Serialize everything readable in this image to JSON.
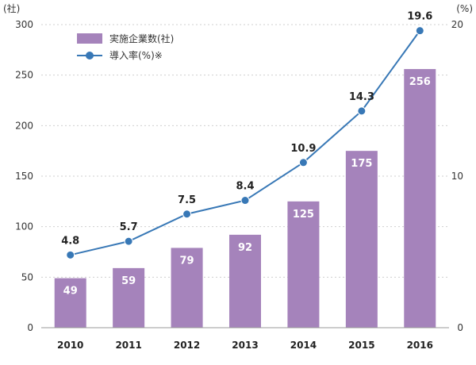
{
  "chart_data": {
    "type": "bar",
    "categories": [
      "2010",
      "2011",
      "2012",
      "2013",
      "2014",
      "2015",
      "2016"
    ],
    "series": [
      {
        "name": "実施企業数(社)",
        "type": "bar",
        "axis": "left",
        "values": [
          49,
          59,
          79,
          92,
          125,
          175,
          256
        ],
        "color": "#a583bb"
      },
      {
        "name": "導入率(%)※",
        "type": "line",
        "axis": "right",
        "values": [
          4.8,
          5.7,
          7.5,
          8.4,
          10.9,
          14.3,
          19.6
        ],
        "color": "#3878b6"
      }
    ],
    "left_axis": {
      "unit": "(社)",
      "ticks": [
        0,
        50,
        100,
        150,
        200,
        250,
        300
      ],
      "ylim": [
        0,
        300
      ]
    },
    "right_axis": {
      "unit": "(%)",
      "ticks": [
        0,
        10,
        20
      ],
      "ylim": [
        0,
        20
      ]
    },
    "grid": true,
    "legend_position": "top-left"
  }
}
